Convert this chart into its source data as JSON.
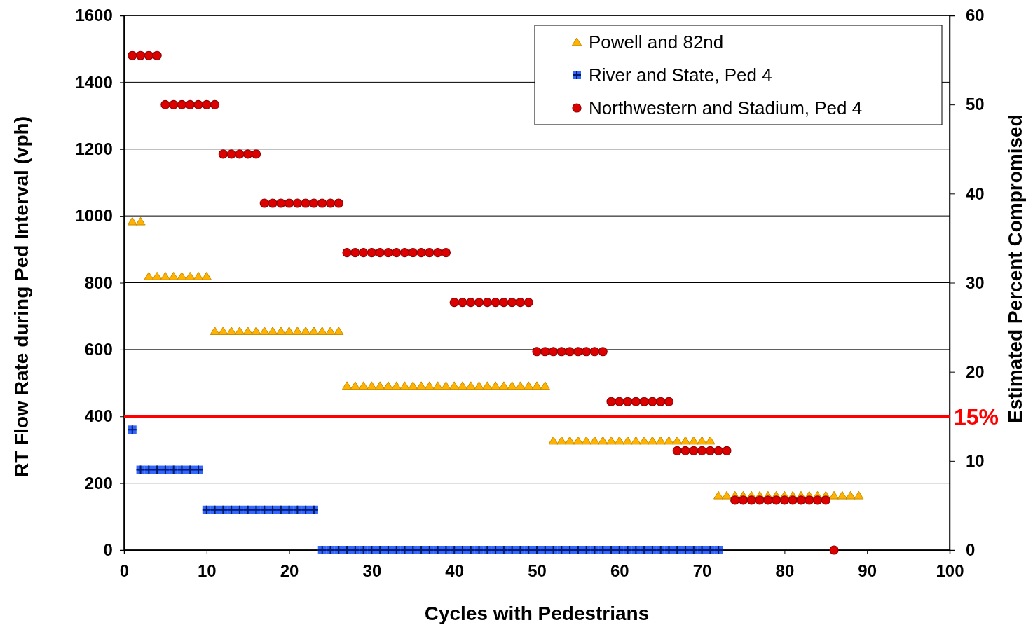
{
  "chart_data": {
    "type": "scatter",
    "xlabel": "Cycles with Pedestrians",
    "ylabel": "RT Flow Rate during Ped Interval (vph)",
    "y2label": "Estimated Percent Compromised",
    "xlim": [
      0,
      100
    ],
    "xticks": [
      0,
      10,
      20,
      30,
      40,
      50,
      60,
      70,
      80,
      90,
      100
    ],
    "ylim": [
      0,
      1600
    ],
    "yticks": [
      0,
      200,
      400,
      600,
      800,
      1000,
      1200,
      1400,
      1600
    ],
    "y2lim": [
      0,
      60
    ],
    "y2ticks": [
      0,
      10,
      20,
      30,
      40,
      50,
      60
    ],
    "grid": "y",
    "legend": "top right",
    "ref_lines": [
      {
        "axis": "y2",
        "value": 15,
        "label": "15%",
        "color": "#ff0000"
      }
    ],
    "series": [
      {
        "name": "Powell and 82nd",
        "color": "#ffb300",
        "marker": "triangle",
        "x": [
          1,
          2,
          3,
          4,
          5,
          6,
          7,
          8,
          9,
          10,
          11,
          12,
          13,
          14,
          15,
          16,
          17,
          18,
          19,
          20,
          21,
          22,
          23,
          24,
          25,
          26,
          27,
          28,
          29,
          30,
          31,
          32,
          33,
          34,
          35,
          36,
          37,
          38,
          39,
          40,
          41,
          42,
          43,
          44,
          45,
          46,
          47,
          48,
          49,
          50,
          51,
          52,
          53,
          54,
          55,
          56,
          57,
          58,
          59,
          60,
          61,
          62,
          63,
          64,
          65,
          66,
          67,
          68,
          69,
          70,
          71,
          72,
          73,
          74,
          75,
          76,
          77,
          78,
          79,
          80,
          81,
          82,
          83,
          84,
          85,
          86,
          87,
          88,
          89
        ],
        "values": [
          983,
          983,
          819,
          819,
          819,
          819,
          819,
          819,
          819,
          819,
          655,
          655,
          655,
          655,
          655,
          655,
          655,
          655,
          655,
          655,
          655,
          655,
          655,
          655,
          655,
          655,
          491,
          491,
          491,
          491,
          491,
          491,
          491,
          491,
          491,
          491,
          491,
          491,
          491,
          491,
          491,
          491,
          491,
          491,
          491,
          491,
          491,
          491,
          491,
          491,
          491,
          327,
          327,
          327,
          327,
          327,
          327,
          327,
          327,
          327,
          327,
          327,
          327,
          327,
          327,
          327,
          327,
          327,
          327,
          327,
          327,
          163,
          163,
          163,
          163,
          163,
          163,
          163,
          163,
          163,
          163,
          163,
          163,
          163,
          163,
          163,
          163,
          163,
          163
        ]
      },
      {
        "name": "River and State, Ped 4",
        "color": "#3366ff",
        "marker": "square",
        "x": [
          1,
          2,
          3,
          4,
          5,
          6,
          7,
          8,
          9,
          10,
          11,
          12,
          13,
          14,
          15,
          16,
          17,
          18,
          19,
          20,
          21,
          22,
          23,
          24,
          25,
          26,
          27,
          28,
          29,
          30,
          31,
          32,
          33,
          34,
          35,
          36,
          37,
          38,
          39,
          40,
          41,
          42,
          43,
          44,
          45,
          46,
          47,
          48,
          49,
          50,
          51,
          52,
          53,
          54,
          55,
          56,
          57,
          58,
          59,
          60,
          61,
          62,
          63,
          64,
          65,
          66,
          67,
          68,
          69,
          70,
          71,
          72
        ],
        "values": [
          360,
          240,
          240,
          240,
          240,
          240,
          240,
          240,
          240,
          120,
          120,
          120,
          120,
          120,
          120,
          120,
          120,
          120,
          120,
          120,
          120,
          120,
          120,
          0,
          0,
          0,
          0,
          0,
          0,
          0,
          0,
          0,
          0,
          0,
          0,
          0,
          0,
          0,
          0,
          0,
          0,
          0,
          0,
          0,
          0,
          0,
          0,
          0,
          0,
          0,
          0,
          0,
          0,
          0,
          0,
          0,
          0,
          0,
          0,
          0,
          0,
          0,
          0,
          0,
          0,
          0,
          0,
          0,
          0,
          0,
          0,
          0
        ]
      },
      {
        "name": "Northwestern and Stadium, Ped 4",
        "color": "#dd0000",
        "marker": "circle",
        "x": [
          1,
          2,
          3,
          4,
          5,
          6,
          7,
          8,
          9,
          10,
          11,
          12,
          13,
          14,
          15,
          16,
          17,
          18,
          19,
          20,
          21,
          22,
          23,
          24,
          25,
          26,
          27,
          28,
          29,
          30,
          31,
          32,
          33,
          34,
          35,
          36,
          37,
          38,
          39,
          40,
          41,
          42,
          43,
          44,
          45,
          46,
          47,
          48,
          49,
          50,
          51,
          52,
          53,
          54,
          55,
          56,
          57,
          58,
          59,
          60,
          61,
          62,
          63,
          64,
          65,
          66,
          67,
          68,
          69,
          70,
          71,
          72,
          73,
          74,
          75,
          76,
          77,
          78,
          79,
          80,
          81,
          82,
          83,
          84,
          85,
          86
        ],
        "values": [
          1480,
          1480,
          1480,
          1480,
          1333,
          1333,
          1333,
          1333,
          1333,
          1333,
          1333,
          1185,
          1185,
          1185,
          1185,
          1185,
          1038,
          1038,
          1038,
          1038,
          1038,
          1038,
          1038,
          1038,
          1038,
          1038,
          890,
          890,
          890,
          890,
          890,
          890,
          890,
          890,
          890,
          890,
          890,
          890,
          890,
          741,
          741,
          741,
          741,
          741,
          741,
          741,
          741,
          741,
          741,
          594,
          594,
          594,
          594,
          594,
          594,
          594,
          594,
          594,
          444,
          444,
          444,
          444,
          444,
          444,
          444,
          444,
          297,
          297,
          297,
          297,
          297,
          297,
          297,
          149,
          149,
          149,
          149,
          149,
          149,
          149,
          149,
          149,
          149,
          149,
          149,
          0
        ]
      }
    ]
  }
}
